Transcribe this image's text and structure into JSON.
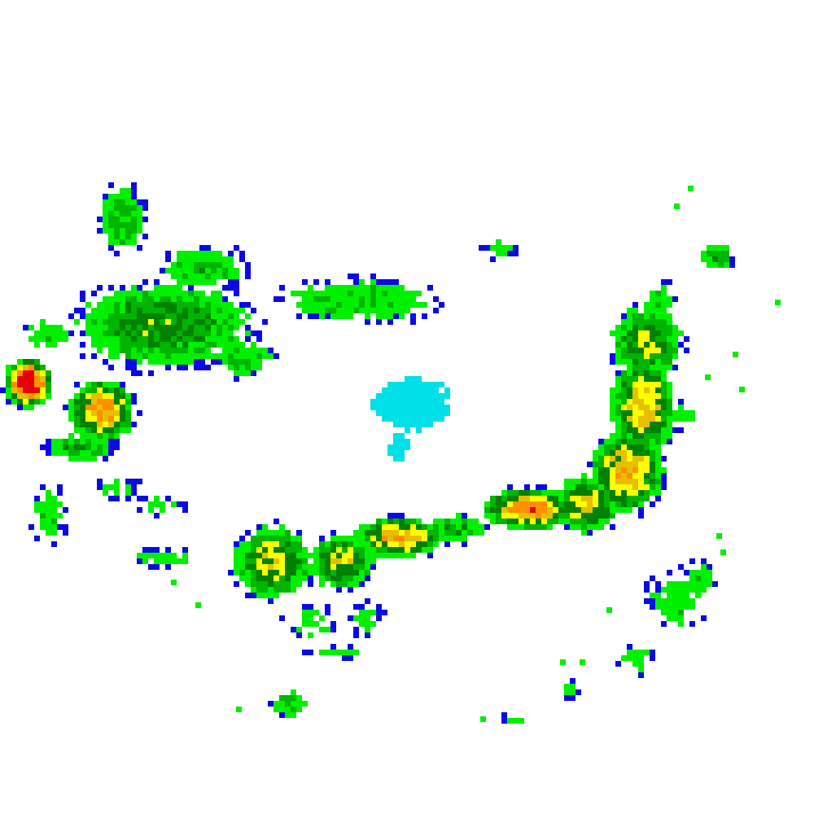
{
  "map": {
    "type": "weather-radar-reflectivity",
    "background": "#ffffff",
    "palette": [
      {
        "level": "blue",
        "color": "#0a0ae6"
      },
      {
        "level": "light-blue",
        "color": "#0096f0"
      },
      {
        "level": "cyan",
        "color": "#00e0e8"
      },
      {
        "level": "light-green",
        "color": "#00f000"
      },
      {
        "level": "green",
        "color": "#00b400"
      },
      {
        "level": "dark-green",
        "color": "#008200"
      },
      {
        "level": "yellow",
        "color": "#ffff00"
      },
      {
        "level": "gold",
        "color": "#e6c000"
      },
      {
        "level": "orange",
        "color": "#ff9000"
      },
      {
        "level": "red",
        "color": "#e60000"
      }
    ]
  }
}
